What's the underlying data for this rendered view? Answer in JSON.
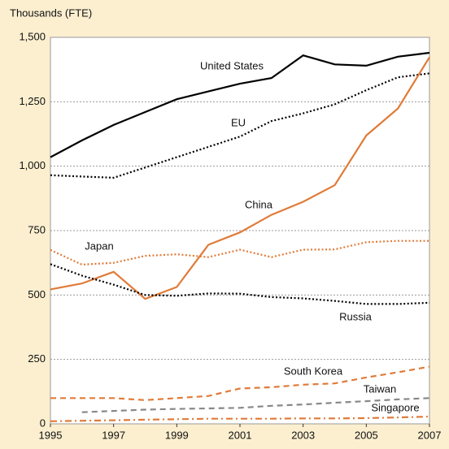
{
  "chart_data": {
    "type": "line",
    "y_axis_label": "Thousands (FTE)",
    "x": [
      1995,
      1996,
      1997,
      1998,
      1999,
      2000,
      2001,
      2002,
      2003,
      2004,
      2005,
      2006,
      2007
    ],
    "xlim": [
      1995,
      2007
    ],
    "xticks": [
      1995,
      1997,
      1999,
      2001,
      2003,
      2005,
      2007
    ],
    "ylim": [
      0,
      1500
    ],
    "yticks": [
      0,
      250,
      500,
      750,
      {
        "value": 1000,
        "label": "1,000"
      },
      {
        "value": 1250,
        "label": "1,250"
      },
      {
        "value": 1500,
        "label": "1,500"
      }
    ],
    "grid": true,
    "series": [
      {
        "name": "United States",
        "color": "#000000",
        "style": "solid",
        "values": [
          1035,
          1100,
          1160,
          1210,
          1260,
          1290,
          1320,
          1342,
          1430,
          1395,
          1390,
          1425,
          1440
        ]
      },
      {
        "name": "EU",
        "color": "#000000",
        "style": "dotted",
        "values": [
          965,
          960,
          955,
          995,
          1035,
          1075,
          1115,
          1175,
          1205,
          1240,
          1295,
          1345,
          1360
        ]
      },
      {
        "name": "China",
        "color": "#e07b39",
        "style": "solid",
        "values": [
          522,
          545,
          590,
          485,
          531,
          695,
          743,
          811,
          862,
          926,
          1119,
          1224,
          1423
        ]
      },
      {
        "name": "Japan",
        "color": "#e07b39",
        "style": "dotted",
        "values": [
          675,
          618,
          625,
          652,
          658,
          647,
          676,
          647,
          676,
          677,
          705,
          710,
          710
        ]
      },
      {
        "name": "Russia",
        "color": "#000000",
        "style": "dotted",
        "values": [
          620,
          575,
          540,
          500,
          497,
          506,
          505,
          492,
          487,
          477,
          465,
          465,
          470
        ]
      },
      {
        "name": "South Korea",
        "color": "#e07b39",
        "style": "dashed",
        "values": [
          100,
          100,
          100,
          92,
          100,
          108,
          137,
          142,
          152,
          157,
          180,
          200,
          222
        ]
      },
      {
        "name": "Taiwan",
        "color": "#888888",
        "style": "dashed",
        "values": [
          null,
          45,
          50,
          55,
          58,
          60,
          62,
          70,
          75,
          82,
          88,
          95,
          100
        ]
      },
      {
        "name": "Singapore",
        "color": "#e07b39",
        "style": "dashdot",
        "values": [
          10,
          12,
          14,
          16,
          18,
          20,
          20,
          20,
          21,
          21,
          22,
          25,
          28
        ]
      }
    ]
  }
}
